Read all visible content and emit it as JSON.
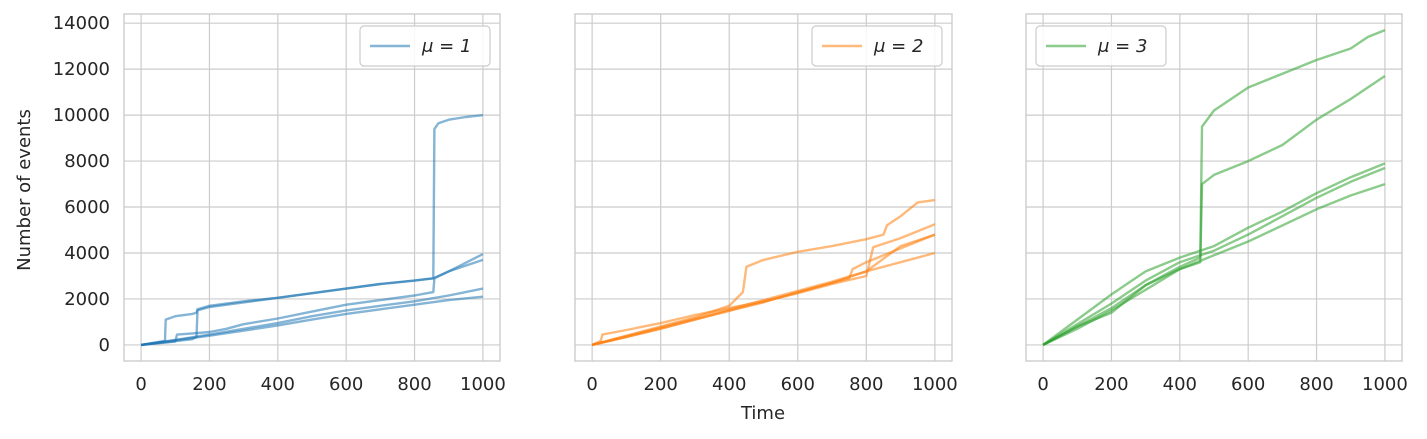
{
  "figure": {
    "xlabel": "Time",
    "ylabel": "Number of events"
  },
  "chart_data": [
    {
      "type": "line",
      "legend_label": "μ = 1",
      "legend_position": "top-right",
      "color": "#1f77b4",
      "grid": true,
      "xlim": [
        -50,
        1050
      ],
      "ylim": [
        -700,
        14400
      ],
      "xticks": [
        0,
        200,
        400,
        600,
        800,
        1000
      ],
      "yticks": [
        0,
        2000,
        4000,
        6000,
        8000,
        10000,
        12000,
        14000
      ],
      "series": [
        {
          "x": [
            0,
            70,
            72,
            100,
            150,
            162,
            165,
            200,
            300,
            400,
            500,
            600,
            700,
            800,
            855,
            858,
            870,
            900,
            950,
            1000
          ],
          "y": [
            0,
            180,
            1100,
            1250,
            1350,
            1400,
            1550,
            1700,
            1900,
            2050,
            2250,
            2450,
            2650,
            2800,
            2900,
            9400,
            9650,
            9800,
            9920,
            10000
          ]
        },
        {
          "x": [
            0,
            150,
            162,
            165,
            200,
            300,
            400,
            500,
            600,
            700,
            800,
            855,
            900,
            950,
            1000
          ],
          "y": [
            0,
            250,
            350,
            1500,
            1650,
            1850,
            2050,
            2250,
            2450,
            2650,
            2800,
            2900,
            3200,
            3450,
            3700
          ]
        },
        {
          "x": [
            0,
            100,
            105,
            150,
            200,
            250,
            300,
            400,
            500,
            600,
            700,
            800,
            855,
            858,
            900,
            1000
          ],
          "y": [
            0,
            150,
            450,
            500,
            560,
            700,
            900,
            1150,
            1450,
            1750,
            1950,
            2150,
            2300,
            2900,
            3200,
            3950
          ]
        },
        {
          "x": [
            0,
            100,
            200,
            300,
            400,
            500,
            600,
            700,
            800,
            900,
            1000
          ],
          "y": [
            0,
            220,
            450,
            700,
            950,
            1250,
            1500,
            1700,
            1900,
            2150,
            2450
          ]
        },
        {
          "x": [
            0,
            100,
            200,
            300,
            400,
            500,
            600,
            700,
            800,
            900,
            1000
          ],
          "y": [
            0,
            200,
            400,
            620,
            850,
            1100,
            1350,
            1550,
            1750,
            1950,
            2100
          ]
        }
      ]
    },
    {
      "type": "line",
      "legend_label": "μ = 2",
      "legend_position": "top-right",
      "color": "#ff7f0e",
      "grid": true,
      "xlim": [
        -50,
        1050
      ],
      "ylim": [
        -700,
        14400
      ],
      "xticks": [
        0,
        200,
        400,
        600,
        800,
        1000
      ],
      "yticks": [
        0,
        2000,
        4000,
        6000,
        8000,
        10000,
        12000,
        14000
      ],
      "series": [
        {
          "x": [
            0,
            100,
            200,
            300,
            400,
            440,
            450,
            500,
            600,
            700,
            800,
            850,
            860,
            900,
            950,
            1000
          ],
          "y": [
            0,
            400,
            800,
            1200,
            1700,
            2300,
            3400,
            3700,
            4050,
            4300,
            4600,
            4800,
            5200,
            5600,
            6200,
            6300
          ]
        },
        {
          "x": [
            0,
            25,
            30,
            100,
            200,
            300,
            400,
            500,
            600,
            700,
            800,
            820,
            900,
            1000
          ],
          "y": [
            0,
            180,
            450,
            650,
            950,
            1300,
            1600,
            1900,
            2250,
            2650,
            3000,
            4250,
            4650,
            5250
          ]
        },
        {
          "x": [
            0,
            100,
            200,
            300,
            400,
            500,
            600,
            700,
            750,
            760,
            800,
            900,
            1000
          ],
          "y": [
            0,
            350,
            700,
            1100,
            1500,
            1850,
            2300,
            2700,
            2900,
            3300,
            3600,
            4200,
            4800
          ]
        },
        {
          "x": [
            0,
            100,
            200,
            300,
            400,
            500,
            600,
            700,
            800,
            900,
            1000
          ],
          "y": [
            0,
            380,
            760,
            1150,
            1550,
            1950,
            2350,
            2750,
            3200,
            3600,
            4000
          ]
        },
        {
          "x": [
            0,
            100,
            200,
            300,
            400,
            500,
            600,
            700,
            800,
            900,
            1000
          ],
          "y": [
            0,
            340,
            720,
            1100,
            1480,
            1880,
            2280,
            2700,
            3200,
            4300,
            4800
          ]
        }
      ]
    },
    {
      "type": "line",
      "legend_label": "μ = 3",
      "legend_position": "top-left",
      "color": "#2ca02c",
      "grid": true,
      "xlim": [
        -50,
        1050
      ],
      "ylim": [
        -700,
        14400
      ],
      "xticks": [
        0,
        200,
        400,
        600,
        800,
        1000
      ],
      "yticks": [
        0,
        2000,
        4000,
        6000,
        8000,
        10000,
        12000,
        14000
      ],
      "series": [
        {
          "x": [
            0,
            100,
            200,
            300,
            400,
            460,
            465,
            500,
            600,
            700,
            800,
            900,
            950,
            1000
          ],
          "y": [
            0,
            800,
            1600,
            2600,
            3400,
            3800,
            9500,
            10200,
            11200,
            11800,
            12400,
            12900,
            13400,
            13700
          ]
        },
        {
          "x": [
            0,
            100,
            200,
            300,
            400,
            460,
            465,
            500,
            600,
            700,
            800,
            900,
            1000
          ],
          "y": [
            0,
            700,
            1500,
            2400,
            3300,
            3600,
            7000,
            7400,
            8000,
            8700,
            9800,
            10700,
            11700
          ]
        },
        {
          "x": [
            0,
            100,
            200,
            300,
            400,
            500,
            600,
            700,
            800,
            900,
            1000
          ],
          "y": [
            0,
            1100,
            2200,
            3200,
            3800,
            4300,
            5100,
            5800,
            6600,
            7300,
            7900
          ]
        },
        {
          "x": [
            0,
            100,
            200,
            300,
            400,
            500,
            600,
            700,
            800,
            900,
            1000
          ],
          "y": [
            0,
            900,
            1800,
            2800,
            3600,
            4100,
            4800,
            5600,
            6400,
            7100,
            7700
          ]
        },
        {
          "x": [
            0,
            100,
            200,
            300,
            400,
            500,
            600,
            700,
            800,
            900,
            1000
          ],
          "y": [
            0,
            800,
            1400,
            2600,
            3300,
            3900,
            4500,
            5200,
            5900,
            6500,
            7000
          ]
        }
      ]
    }
  ]
}
